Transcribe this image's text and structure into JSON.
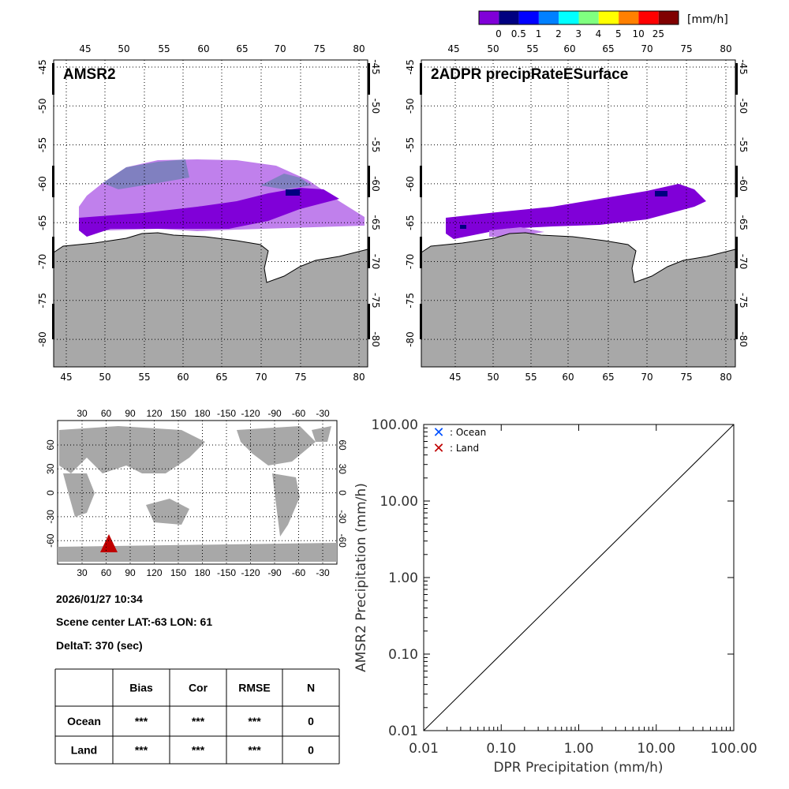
{
  "colorbar": {
    "unit": "[mm/h]",
    "colors": [
      "#8000d8",
      "#000080",
      "#0000ff",
      "#0080ff",
      "#00ffff",
      "#80ff80",
      "#ffff00",
      "#ff8000",
      "#ff0000",
      "#800000"
    ],
    "labels": [
      "0",
      "0.5",
      "1",
      "2",
      "3",
      "4",
      "5",
      "10",
      "25"
    ]
  },
  "panels": [
    {
      "title": "AMSR2",
      "lon_ticks": [
        "45",
        "50",
        "55",
        "60",
        "65",
        "70",
        "75",
        "80"
      ],
      "lat_ticks": [
        "-45",
        "-50",
        "-55",
        "-60",
        "-65",
        "-70",
        "-75",
        "-80"
      ]
    },
    {
      "title": "2ADPR precipRateESurface",
      "lon_ticks": [
        "45",
        "50",
        "55",
        "60",
        "65",
        "70",
        "75",
        "80"
      ],
      "lat_ticks": [
        "-45",
        "-50",
        "-55",
        "-60",
        "-65",
        "-70",
        "-75",
        "-80"
      ]
    }
  ],
  "colors": {
    "land": "#a8a8a8",
    "amsr_light": "#c080ec",
    "amsr_mid": "#8080c0",
    "rain_purple": "#8000d8",
    "rain_navy": "#000080",
    "marker": "#c00000"
  },
  "world_map": {
    "lon_ticks": [
      "30",
      "60",
      "90",
      "120",
      "150",
      "180",
      "-150",
      "-120",
      "-90",
      "-60",
      "-30"
    ],
    "lat_ticks": [
      "60",
      "30",
      "0",
      "-30",
      "-60"
    ],
    "marker": "triangle"
  },
  "info": {
    "datetime": "2026/01/27 10:34",
    "scene_center": "Scene center LAT:-63   LON:  61",
    "delta_t": "DeltaT:  370 (sec)"
  },
  "stats_table": {
    "headers": [
      "",
      "Bias",
      "Cor",
      "RMSE",
      "N"
    ],
    "rows": [
      [
        "Ocean",
        "***",
        "***",
        "***",
        "0"
      ],
      [
        "Land",
        "***",
        "***",
        "***",
        "0"
      ]
    ]
  },
  "chart_data": {
    "type": "scatter",
    "xlabel": "DPR Precipitation (mm/h)",
    "ylabel": "AMSR2 Precipitation (mm/h)",
    "xscale": "log",
    "yscale": "log",
    "xlim": [
      0.01,
      100
    ],
    "ylim": [
      0.01,
      100
    ],
    "x_ticks": [
      "0.01",
      "0.10",
      "1.00",
      "10.00",
      "100.00"
    ],
    "y_ticks": [
      "0.01",
      "0.10",
      "1.00",
      "10.00",
      "100.00"
    ],
    "legend": [
      {
        "label": ": Ocean",
        "color": "#0050ff",
        "marker": "x"
      },
      {
        "label": ": Land",
        "color": "#c00000",
        "marker": "x"
      }
    ],
    "legend_position": "top-left",
    "reference_line": "1:1",
    "series": [
      {
        "name": "Ocean",
        "points": []
      },
      {
        "name": "Land",
        "points": []
      }
    ]
  }
}
